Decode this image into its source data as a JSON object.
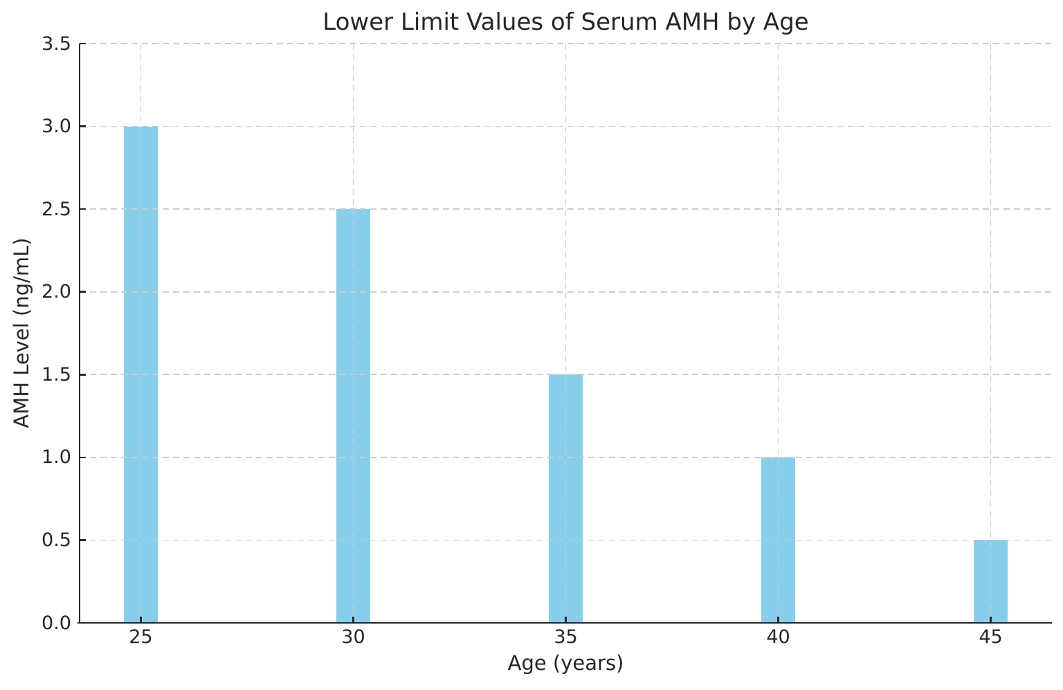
{
  "figure": {
    "background": "#ffffff"
  },
  "chart_data": {
    "type": "bar",
    "title": "Lower Limit Values of Serum AMH by Age",
    "xlabel": "Age (years)",
    "ylabel": "AMH Level (ng/mL)",
    "categories": [
      "25",
      "30",
      "35",
      "40",
      "45"
    ],
    "x_values": [
      25,
      30,
      35,
      40,
      45
    ],
    "values": [
      3.0,
      2.5,
      1.5,
      1.0,
      0.5
    ],
    "xlim": [
      23.56,
      46.44
    ],
    "ylim": [
      0,
      3.5
    ],
    "yticks": [
      0,
      0.5,
      1,
      1.5,
      2,
      2.5,
      3,
      3.5
    ],
    "ytick_labels": [
      "0.0",
      "0.5",
      "1.0",
      "1.5",
      "2.0",
      "2.5",
      "3.0",
      "3.5"
    ],
    "bar_width_units": 0.8,
    "bar_color": "#87CEEB",
    "grid": true,
    "grid_style": "dashed",
    "grid_color": "#cdcdcd",
    "axis_color": "#262626",
    "text_color": "#262626",
    "legend": "none",
    "spines": [
      "left",
      "bottom"
    ],
    "tick_direction": "in"
  }
}
